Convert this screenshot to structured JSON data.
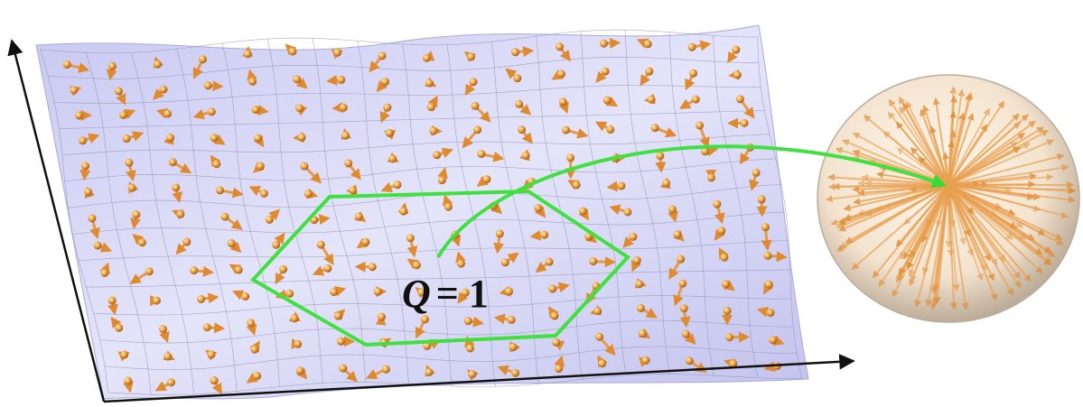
{
  "annotation": {
    "symbol": "Q",
    "relation": "= 1"
  }
}
